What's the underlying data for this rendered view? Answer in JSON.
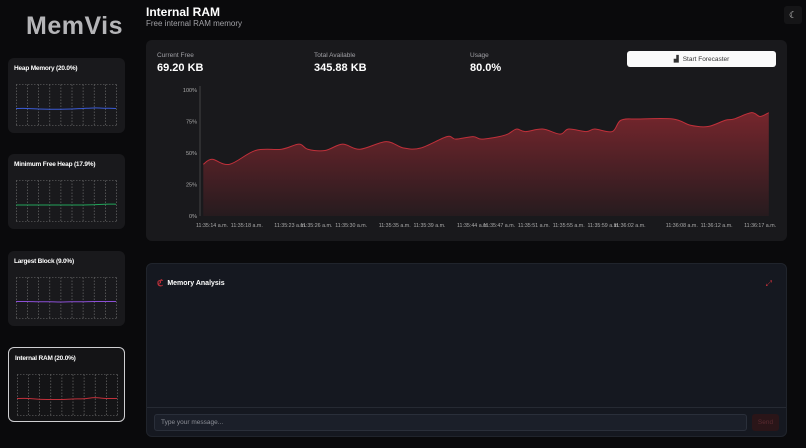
{
  "app": {
    "logo": "MemVis",
    "theme_icon": "moon-icon"
  },
  "sidebar": {
    "items": [
      {
        "label": "Heap Memory (20.0%)",
        "color": "#3b5bd6",
        "values": [
          52,
          52,
          50,
          49,
          49,
          50,
          52,
          54,
          53,
          52
        ],
        "active": false
      },
      {
        "label": "Minimum Free Heap (17.9%)",
        "color": "#22a45a",
        "values": [
          50,
          50,
          50,
          50,
          50,
          50,
          50,
          51,
          53,
          53
        ],
        "active": false
      },
      {
        "label": "Largest Block (9.0%)",
        "color": "#8b4fd6",
        "values": [
          52,
          52,
          51,
          51,
          50,
          51,
          51,
          52,
          52,
          52
        ],
        "active": false
      },
      {
        "label": "Internal RAM (20.0%)",
        "color": "#c0303a",
        "values": [
          52,
          52,
          49,
          48,
          48,
          50,
          51,
          55,
          52,
          52
        ],
        "active": true
      }
    ]
  },
  "header": {
    "title": "Internal RAM",
    "subtitle": "Free internal RAM memory"
  },
  "stats": {
    "current_free_label": "Current Free",
    "current_free": "69.20 KB",
    "total_label": "Total Available",
    "total": "345.88 KB",
    "usage_label": "Usage",
    "usage": "80.0%"
  },
  "forecaster": {
    "label": "Start Forecaster",
    "icon": "chart-icon"
  },
  "chart_data": {
    "type": "area",
    "color": "#c0303a",
    "ylim": [
      0,
      100
    ],
    "grid": false,
    "yticks": [
      "0%",
      "25%",
      "50%",
      "75%",
      "100%"
    ],
    "xticks": [
      "11:35:14 a.m.",
      "11:35:18 a.m.",
      "11:35:23 a.m.",
      "11:35:26 a.m.",
      "11:35:30 a.m.",
      "11:35:35 a.m.",
      "11:35:39 a.m.",
      "11:35:44 a.m.",
      "11:35:47 a.m.",
      "11:35:51 a.m.",
      "11:35:55 a.m.",
      "11:35:59 a.m.",
      "11:36:02 a.m.",
      "11:36:08 a.m.",
      "11:36:12 a.m.",
      "11:36:17 a.m."
    ],
    "x": [
      "11:35:13",
      "11:35:14",
      "11:35:16",
      "11:35:19",
      "11:35:22",
      "11:35:24",
      "11:35:25",
      "11:35:27",
      "11:35:29",
      "11:35:31",
      "11:35:34",
      "11:35:36",
      "11:35:38",
      "11:35:41",
      "11:35:42",
      "11:35:44",
      "11:35:45",
      "11:35:47",
      "11:35:48",
      "11:35:49",
      "11:35:50",
      "11:35:52",
      "11:35:54",
      "11:35:55",
      "11:35:57",
      "11:35:58",
      "11:36:00",
      "11:36:01",
      "11:36:03",
      "11:36:07",
      "11:36:09",
      "11:36:11",
      "11:36:13",
      "11:36:14",
      "11:36:16",
      "11:36:17",
      "11:36:18"
    ],
    "y": [
      41,
      45,
      41,
      52,
      53,
      57,
      53,
      52,
      57,
      53,
      59,
      54,
      54,
      63,
      61,
      63,
      61,
      63,
      65,
      69,
      67,
      69,
      65,
      69,
      67,
      69,
      67,
      76,
      77,
      77,
      72,
      71,
      76,
      77,
      82,
      79,
      82
    ]
  },
  "chat": {
    "title": "Memory Analysis",
    "placeholder": "Type your message...",
    "send": "Send"
  }
}
